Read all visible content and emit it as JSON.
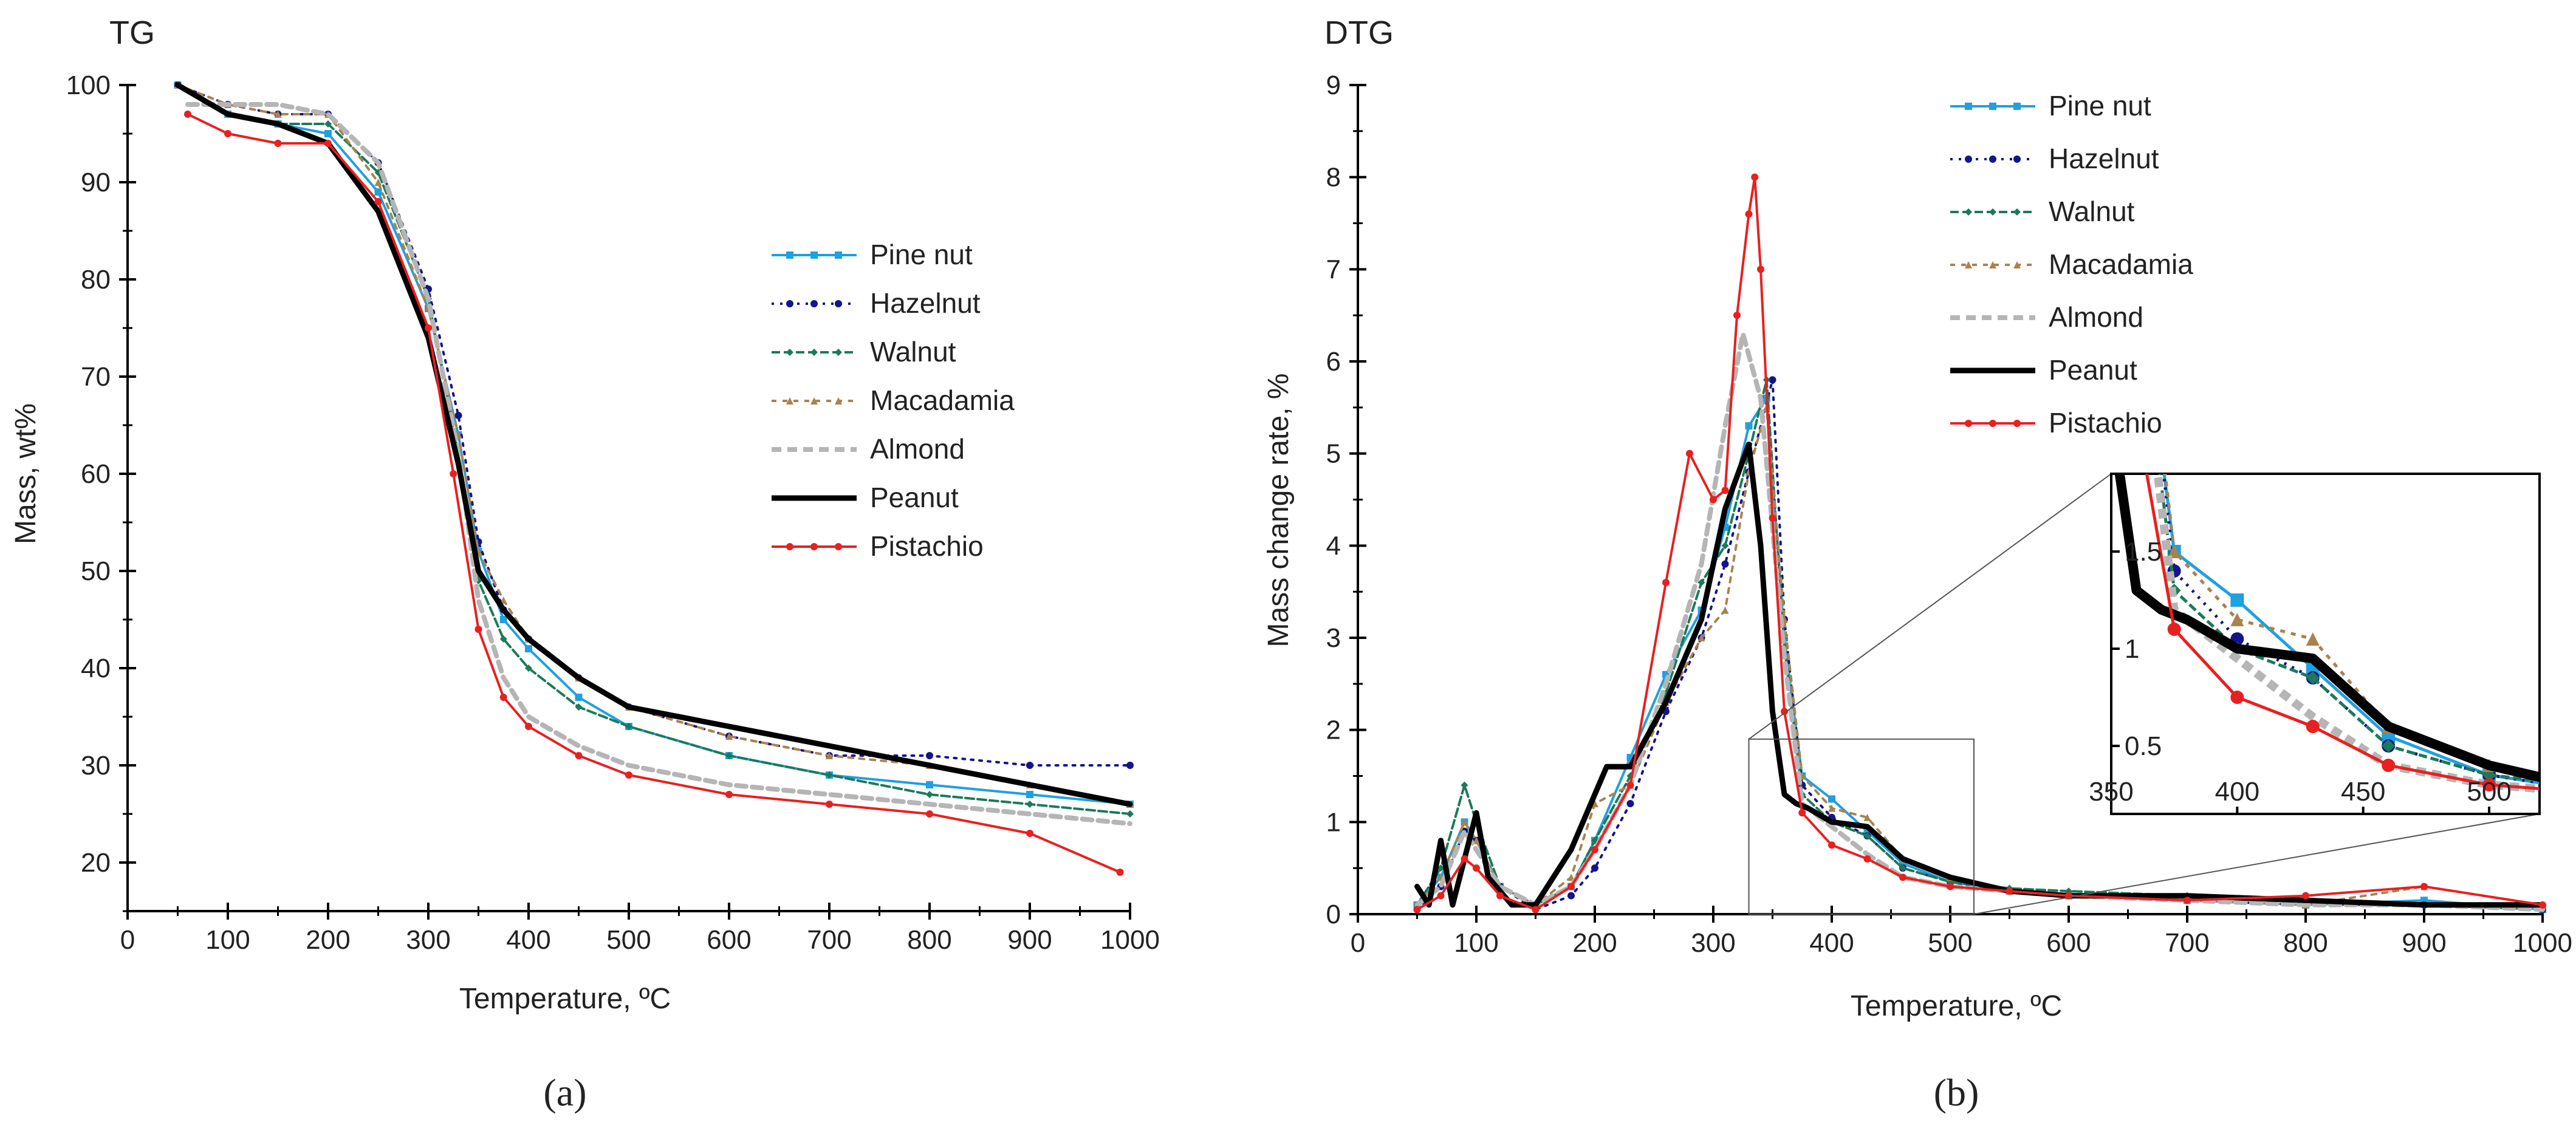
{
  "series_styles": [
    {
      "name": "Pine nut",
      "color": "#1FA0E0",
      "dash": "",
      "marker": "square"
    },
    {
      "name": "Hazelnut",
      "color": "#14148C",
      "dash": "4 10",
      "marker": "circle"
    },
    {
      "name": "Walnut",
      "color": "#1B7A5A",
      "dash": "14 6",
      "marker": "diamond"
    },
    {
      "name": "Macadamia",
      "color": "#A9834F",
      "dash": "8 10",
      "marker": "triangle"
    },
    {
      "name": "Almond",
      "color": "#B5B5B5",
      "dash": "16 10",
      "marker": "none"
    },
    {
      "name": "Peanut",
      "color": "#000000",
      "dash": "",
      "marker": "none"
    },
    {
      "name": "Pistachio",
      "color": "#E82020",
      "dash": "",
      "marker": "circle"
    }
  ],
  "chart_data": [
    {
      "id": "tg",
      "type": "line",
      "title": "TG",
      "xlabel": "Temperature, ºC",
      "ylabel": "Mass, wt%",
      "xlim": [
        0,
        1000
      ],
      "ylim": [
        15,
        100
      ],
      "xticks": [
        0,
        100,
        200,
        300,
        400,
        500,
        600,
        700,
        800,
        900,
        1000
      ],
      "yticks": [
        20,
        30,
        40,
        50,
        60,
        70,
        80,
        90,
        100
      ],
      "caption": "(a)",
      "series": [
        {
          "name": "Pine nut",
          "x": [
            50,
            100,
            150,
            200,
            250,
            300,
            330,
            350,
            375,
            400,
            450,
            500,
            600,
            700,
            800,
            900,
            1000
          ],
          "y": [
            100,
            97,
            96,
            95,
            89,
            77,
            64,
            52,
            45,
            42,
            37,
            34,
            31,
            29,
            28,
            27,
            26
          ]
        },
        {
          "name": "Hazelnut",
          "x": [
            50,
            100,
            150,
            200,
            250,
            300,
            330,
            350,
            375,
            400,
            450,
            500,
            600,
            700,
            800,
            900,
            1000
          ],
          "y": [
            100,
            98,
            97,
            97,
            92,
            79,
            66,
            53,
            46,
            43,
            39,
            36,
            33,
            31,
            31,
            30,
            30
          ]
        },
        {
          "name": "Walnut",
          "x": [
            50,
            100,
            150,
            200,
            250,
            300,
            330,
            350,
            375,
            400,
            450,
            500,
            600,
            700,
            800,
            900,
            1000
          ],
          "y": [
            100,
            97,
            96,
            96,
            91,
            78,
            62,
            49,
            43,
            40,
            36,
            34,
            31,
            29,
            27,
            26,
            25
          ]
        },
        {
          "name": "Macadamia",
          "x": [
            50,
            100,
            150,
            200,
            250,
            300,
            330,
            350,
            375,
            400,
            450,
            500,
            600,
            700,
            800,
            900,
            1000
          ],
          "y": [
            100,
            98,
            97,
            97,
            90,
            77,
            64,
            52,
            47,
            43,
            39,
            36,
            33,
            31,
            30,
            28,
            26
          ]
        },
        {
          "name": "Almond",
          "x": [
            60,
            100,
            150,
            200,
            250,
            300,
            330,
            350,
            375,
            400,
            450,
            500,
            600,
            700,
            800,
            900,
            1000
          ],
          "y": [
            98,
            98,
            98,
            97,
            92,
            78,
            62,
            47,
            39,
            35,
            32,
            30,
            28,
            27,
            26,
            25,
            24
          ]
        },
        {
          "name": "Peanut",
          "x": [
            50,
            100,
            150,
            200,
            250,
            300,
            330,
            350,
            375,
            400,
            450,
            500,
            600,
            700,
            800,
            900,
            1000
          ],
          "y": [
            100,
            97,
            96,
            94,
            87,
            74,
            61,
            50,
            46,
            43,
            39,
            36,
            34,
            32,
            30,
            28,
            26
          ]
        },
        {
          "name": "Pistachio",
          "x": [
            60,
            100,
            150,
            200,
            250,
            300,
            325,
            350,
            375,
            400,
            450,
            500,
            600,
            700,
            800,
            900,
            990
          ],
          "y": [
            97,
            95,
            94,
            94,
            88,
            75,
            60,
            44,
            37,
            34,
            31,
            29,
            27,
            26,
            25,
            23,
            19
          ]
        }
      ]
    },
    {
      "id": "dtg",
      "type": "line",
      "title": "DTG",
      "xlabel": "Temperature, ºC",
      "ylabel": "Mass change rate, %",
      "xlim": [
        0,
        1000
      ],
      "ylim": [
        0,
        9
      ],
      "xticks": [
        0,
        100,
        200,
        300,
        400,
        500,
        600,
        700,
        800,
        900,
        1000
      ],
      "yticks": [
        0,
        1,
        2,
        3,
        4,
        5,
        6,
        7,
        8,
        9
      ],
      "caption": "(b)",
      "zoom_box": {
        "xlim": [
          330,
          520
        ],
        "ylim": [
          0,
          1.9
        ]
      },
      "series": [
        {
          "name": "Pine nut",
          "x": [
            50,
            70,
            90,
            100,
            120,
            150,
            180,
            200,
            230,
            260,
            290,
            310,
            330,
            345,
            360,
            375,
            400,
            430,
            460,
            500,
            550,
            600,
            700,
            800,
            900,
            1000
          ],
          "y": [
            0.1,
            0.4,
            1.0,
            0.8,
            0.3,
            0.1,
            0.3,
            0.8,
            1.7,
            2.6,
            3.3,
            4.2,
            5.3,
            5.6,
            3.0,
            1.5,
            1.25,
            0.9,
            0.55,
            0.35,
            0.25,
            0.2,
            0.15,
            0.1,
            0.15,
            0.05
          ]
        },
        {
          "name": "Hazelnut",
          "x": [
            50,
            70,
            90,
            100,
            120,
            150,
            180,
            200,
            230,
            260,
            290,
            310,
            330,
            350,
            360,
            375,
            400,
            430,
            460,
            500,
            550,
            600,
            700,
            800,
            900,
            1000
          ],
          "y": [
            0.05,
            0.3,
            0.9,
            0.8,
            0.3,
            0.05,
            0.2,
            0.5,
            1.2,
            2.2,
            3.0,
            3.8,
            4.8,
            5.8,
            3.2,
            1.4,
            1.05,
            0.85,
            0.5,
            0.35,
            0.25,
            0.2,
            0.15,
            0.1,
            0.1,
            0.05
          ]
        },
        {
          "name": "Walnut",
          "x": [
            50,
            70,
            90,
            100,
            120,
            150,
            180,
            200,
            230,
            260,
            290,
            310,
            330,
            345,
            360,
            375,
            400,
            430,
            460,
            500,
            550,
            600,
            700,
            800,
            900,
            1000
          ],
          "y": [
            0.1,
            0.5,
            1.4,
            1.0,
            0.3,
            0.1,
            0.3,
            0.8,
            1.5,
            2.4,
            3.6,
            4.0,
            5.0,
            5.8,
            2.9,
            1.3,
            1.0,
            0.85,
            0.5,
            0.35,
            0.28,
            0.25,
            0.2,
            0.15,
            0.1,
            0.05
          ]
        },
        {
          "name": "Macadamia",
          "x": [
            50,
            70,
            90,
            100,
            120,
            150,
            180,
            200,
            230,
            260,
            290,
            310,
            330,
            345,
            360,
            375,
            400,
            430,
            460,
            500,
            550,
            600,
            700,
            800,
            900,
            1000
          ],
          "y": [
            0.1,
            0.4,
            1.0,
            0.8,
            0.3,
            0.1,
            0.4,
            1.2,
            1.4,
            2.3,
            3.0,
            3.3,
            4.8,
            5.5,
            3.2,
            1.5,
            1.15,
            1.05,
            0.6,
            0.4,
            0.25,
            0.2,
            0.15,
            0.1,
            0.3,
            0.1
          ]
        },
        {
          "name": "Almond",
          "x": [
            50,
            70,
            90,
            100,
            120,
            150,
            180,
            200,
            230,
            260,
            290,
            310,
            325,
            340,
            360,
            375,
            400,
            430,
            460,
            500,
            550,
            600,
            700,
            800,
            900,
            1000
          ],
          "y": [
            0.1,
            0.3,
            0.9,
            0.7,
            0.3,
            0.1,
            0.3,
            0.7,
            1.4,
            2.5,
            3.8,
            5.3,
            6.3,
            5.6,
            2.8,
            1.2,
            0.95,
            0.65,
            0.4,
            0.3,
            0.25,
            0.2,
            0.15,
            0.1,
            0.1,
            0.05
          ]
        },
        {
          "name": "Peanut",
          "x": [
            50,
            60,
            70,
            80,
            90,
            100,
            110,
            130,
            150,
            180,
            200,
            210,
            230,
            260,
            290,
            310,
            330,
            340,
            350,
            360,
            370,
            380,
            400,
            430,
            460,
            500,
            550,
            600,
            700,
            800,
            900,
            1000
          ],
          "y": [
            0.3,
            0.1,
            0.8,
            0.1,
            0.6,
            1.1,
            0.4,
            0.1,
            0.1,
            0.7,
            1.3,
            1.6,
            1.6,
            2.3,
            3.2,
            4.4,
            5.1,
            4.0,
            2.2,
            1.3,
            1.2,
            1.15,
            1.0,
            0.95,
            0.6,
            0.4,
            0.25,
            0.2,
            0.2,
            0.15,
            0.1,
            0.1
          ]
        },
        {
          "name": "Pistachio",
          "x": [
            50,
            70,
            90,
            100,
            120,
            150,
            180,
            200,
            230,
            260,
            280,
            300,
            310,
            320,
            330,
            335,
            340,
            350,
            360,
            375,
            400,
            430,
            460,
            500,
            550,
            600,
            700,
            800,
            900,
            1000
          ],
          "y": [
            0.05,
            0.2,
            0.6,
            0.5,
            0.2,
            0.05,
            0.3,
            0.7,
            1.4,
            3.6,
            5.0,
            4.5,
            4.6,
            6.5,
            7.6,
            8.0,
            7.0,
            4.3,
            2.2,
            1.1,
            0.75,
            0.6,
            0.4,
            0.3,
            0.25,
            0.2,
            0.15,
            0.2,
            0.3,
            0.1
          ]
        }
      ]
    }
  ]
}
